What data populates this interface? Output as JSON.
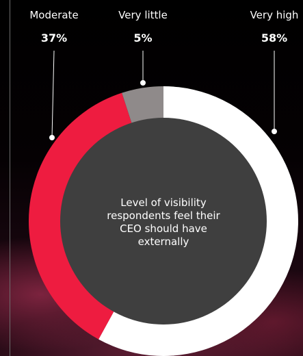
{
  "chart_data": {
    "type": "pie",
    "variant": "donut",
    "center_label": "Level of visibility respondents feel their CEO should have externally",
    "slices": [
      {
        "label": "Very high",
        "percent_label": "58%",
        "value": 58,
        "color": "#ffffff"
      },
      {
        "label": "Moderate",
        "percent_label": "37%",
        "value": 37,
        "color": "#ee1c40"
      },
      {
        "label": "Very little",
        "percent_label": "5%",
        "value": 5,
        "color": "#8f8a8a"
      }
    ],
    "start": "top",
    "direction": "clockwise",
    "hole_color": "#3f3f3f",
    "leader_color": "#ffffff"
  }
}
